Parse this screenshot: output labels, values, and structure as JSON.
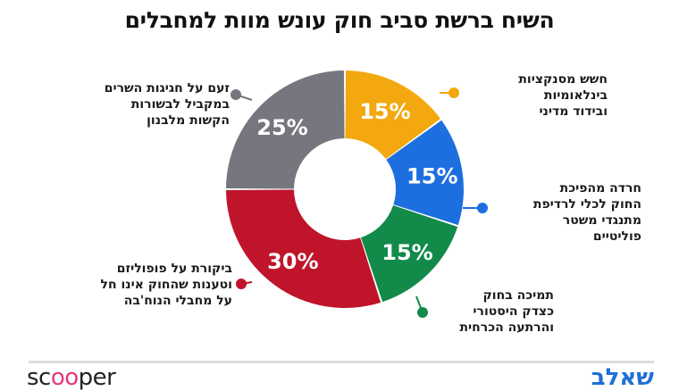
{
  "title": "השיח ברשת סביב חוק עונש מוות למחבלים",
  "chart_data": {
    "type": "pie",
    "donut": true,
    "title": "השיח ברשת סביב חוק עונש מוות למחבלים",
    "slices": [
      {
        "value": 15,
        "label_text": "15%",
        "color": "#f3a80f",
        "lines": [
          "חשש מסנקציות",
          "בינלאומיות",
          "ובידוד מדיני"
        ]
      },
      {
        "value": 15,
        "label_text": "15%",
        "color": "#1d6fe0",
        "lines": [
          "חרדה מהפיכת",
          "החוק לכלי לרדיפת",
          "מתנגדי משטר",
          "פוליטיים"
        ]
      },
      {
        "value": 15,
        "label_text": "15%",
        "color": "#128a49",
        "lines": [
          "תמיכה בחוק",
          "כצדק היסטורי",
          "והרתעה הכרחית"
        ]
      },
      {
        "value": 30,
        "label_text": "30%",
        "color": "#c0142a",
        "lines": [
          "ביקורת על פופוליזם",
          "וטענות שהחוק אינו חל",
          "על מחבלי הנוח'בה"
        ]
      },
      {
        "value": 25,
        "label_text": "25%",
        "color": "#76767e",
        "lines": [
          "זעם על חגיגות השרים",
          "במקביל לבשורות",
          "הקשות מלבנון"
        ]
      }
    ]
  },
  "footer": {
    "brand_left_a": "sc",
    "brand_left_b": "oo",
    "brand_left_c": "per",
    "brand_right": "שאלב"
  }
}
